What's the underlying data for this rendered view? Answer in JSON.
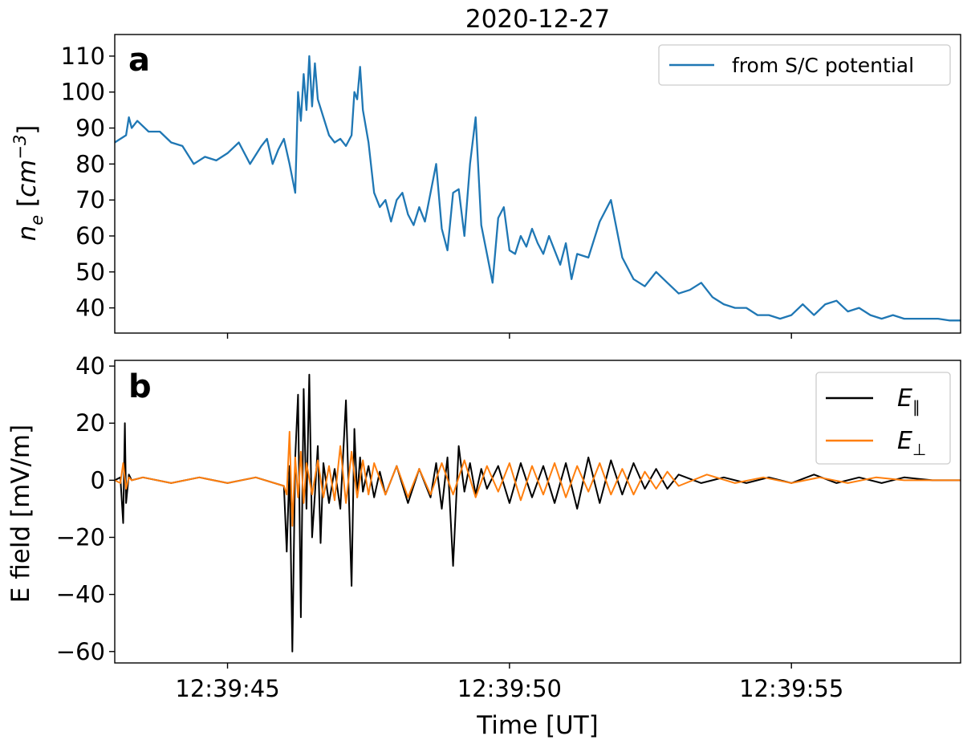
{
  "title": "2020-12-27",
  "chart_data": [
    {
      "type": "line",
      "panel_label": "a",
      "ylabel": "n_e [cm^-3]",
      "ylabel_parts": {
        "symbol": "n",
        "subscript": "e",
        "unit_base": "cm",
        "unit_exp": "−3"
      },
      "ylim": [
        33,
        116
      ],
      "yticks": [
        40,
        50,
        60,
        70,
        80,
        90,
        100,
        110
      ],
      "xlim_seconds": [
        43.0,
        58.0
      ],
      "xticks": [
        "12:39:45",
        "12:39:50",
        "12:39:55"
      ],
      "x_tick_seconds": [
        45,
        50,
        55
      ],
      "legend": {
        "position": "top-right"
      },
      "series": [
        {
          "name": "from S/C potential",
          "color": "#1f77b4",
          "x_seconds": [
            43.0,
            43.1,
            43.2,
            43.25,
            43.3,
            43.4,
            43.6,
            43.8,
            44.0,
            44.2,
            44.4,
            44.6,
            44.8,
            45.0,
            45.2,
            45.4,
            45.6,
            45.7,
            45.8,
            45.9,
            46.0,
            46.1,
            46.2,
            46.25,
            46.3,
            46.35,
            46.4,
            46.45,
            46.5,
            46.55,
            46.6,
            46.7,
            46.8,
            46.9,
            47.0,
            47.1,
            47.2,
            47.25,
            47.3,
            47.35,
            47.4,
            47.5,
            47.6,
            47.7,
            47.8,
            47.9,
            48.0,
            48.1,
            48.2,
            48.3,
            48.4,
            48.5,
            48.6,
            48.7,
            48.8,
            48.9,
            49.0,
            49.1,
            49.2,
            49.3,
            49.4,
            49.5,
            49.6,
            49.7,
            49.8,
            49.9,
            50.0,
            50.1,
            50.2,
            50.3,
            50.4,
            50.5,
            50.6,
            50.7,
            50.8,
            50.9,
            51.0,
            51.1,
            51.2,
            51.4,
            51.6,
            51.8,
            52.0,
            52.2,
            52.4,
            52.5,
            52.6,
            52.8,
            53.0,
            53.2,
            53.4,
            53.6,
            53.8,
            54.0,
            54.2,
            54.4,
            54.6,
            54.8,
            55.0,
            55.2,
            55.4,
            55.6,
            55.8,
            56.0,
            56.2,
            56.4,
            56.6,
            56.8,
            57.0,
            57.2,
            57.4,
            57.6,
            57.8,
            58.0
          ],
          "y": [
            86,
            87,
            88,
            93,
            90,
            92,
            89,
            89,
            86,
            85,
            80,
            82,
            81,
            83,
            86,
            80,
            85,
            87,
            80,
            84,
            87,
            80,
            72,
            100,
            92,
            105,
            95,
            110,
            96,
            108,
            98,
            93,
            88,
            86,
            87,
            85,
            88,
            100,
            98,
            107,
            95,
            86,
            72,
            68,
            70,
            64,
            70,
            72,
            66,
            63,
            68,
            64,
            72,
            80,
            62,
            56,
            72,
            73,
            60,
            80,
            93,
            63,
            55,
            47,
            65,
            68,
            56,
            55,
            60,
            57,
            62,
            58,
            55,
            60,
            56,
            52,
            58,
            48,
            55,
            54,
            64,
            70,
            54,
            48,
            46,
            48,
            50,
            47,
            44,
            45,
            47,
            43,
            41,
            40,
            40,
            38,
            38,
            37,
            38,
            41,
            38,
            41,
            42,
            39,
            40,
            38,
            37,
            38,
            37,
            37,
            37,
            37,
            36.5,
            36.5
          ]
        }
      ]
    },
    {
      "type": "line",
      "panel_label": "b",
      "ylabel": "E field [mV/m]",
      "xlabel": "Time [UT]",
      "ylim": [
        -64,
        42
      ],
      "yticks": [
        -60,
        -40,
        -20,
        0,
        20,
        40
      ],
      "xlim_seconds": [
        43.0,
        58.0
      ],
      "xticks": [
        "12:39:45",
        "12:39:50",
        "12:39:55"
      ],
      "x_tick_seconds": [
        45,
        50,
        55
      ],
      "legend": {
        "position": "top-right"
      },
      "series": [
        {
          "name": "E_∥",
          "color": "#000000",
          "x_seconds": [
            43.0,
            43.1,
            43.15,
            43.18,
            43.2,
            43.25,
            43.3,
            43.5,
            44.0,
            44.5,
            45.0,
            45.5,
            46.0,
            46.05,
            46.1,
            46.15,
            46.2,
            46.25,
            46.3,
            46.35,
            46.4,
            46.45,
            46.5,
            46.55,
            46.6,
            46.65,
            46.7,
            46.8,
            46.9,
            47.0,
            47.1,
            47.2,
            47.25,
            47.3,
            47.35,
            47.4,
            47.5,
            47.6,
            47.7,
            47.8,
            48.0,
            48.2,
            48.4,
            48.6,
            48.7,
            48.8,
            48.9,
            49.0,
            49.1,
            49.2,
            49.3,
            49.4,
            49.5,
            49.6,
            49.8,
            50.0,
            50.2,
            50.4,
            50.6,
            50.8,
            51.0,
            51.2,
            51.4,
            51.6,
            51.8,
            52.0,
            52.2,
            52.4,
            52.6,
            52.8,
            53.0,
            53.4,
            53.8,
            54.2,
            54.6,
            55.0,
            55.4,
            55.8,
            56.2,
            56.6,
            57.0,
            57.5,
            58.0
          ],
          "y": [
            0,
            1,
            -15,
            20,
            -8,
            2,
            0,
            1,
            -1,
            1,
            -1,
            1,
            -2,
            -25,
            5,
            -60,
            8,
            30,
            -48,
            32,
            -10,
            37,
            -20,
            -5,
            12,
            -22,
            6,
            -8,
            4,
            -10,
            28,
            -37,
            18,
            -6,
            8,
            -4,
            5,
            -6,
            3,
            -5,
            5,
            -8,
            4,
            -6,
            6,
            -10,
            8,
            -30,
            12,
            -4,
            6,
            -5,
            4,
            -3,
            5,
            -8,
            6,
            -6,
            5,
            -8,
            6,
            -10,
            8,
            -8,
            7,
            -5,
            6,
            -3,
            4,
            -3,
            2,
            -1,
            1,
            -1,
            1,
            -1,
            2,
            -1,
            1,
            -1,
            1,
            0,
            0
          ]
        },
        {
          "name": "E_⊥",
          "color": "#ff7f0e",
          "x_seconds": [
            43.0,
            43.1,
            43.15,
            43.2,
            43.25,
            43.3,
            43.5,
            44.0,
            44.5,
            45.0,
            45.5,
            46.0,
            46.05,
            46.1,
            46.15,
            46.2,
            46.25,
            46.3,
            46.35,
            46.4,
            46.5,
            46.6,
            46.7,
            46.8,
            46.9,
            47.0,
            47.1,
            47.2,
            47.3,
            47.4,
            47.5,
            47.6,
            47.8,
            48.0,
            48.2,
            48.4,
            48.6,
            48.8,
            49.0,
            49.2,
            49.4,
            49.6,
            49.8,
            50.0,
            50.2,
            50.4,
            50.6,
            50.8,
            51.0,
            51.2,
            51.4,
            51.6,
            51.8,
            52.0,
            52.2,
            52.4,
            52.6,
            52.8,
            53.0,
            53.5,
            54.0,
            54.5,
            55.0,
            55.5,
            56.0,
            56.5,
            57.0,
            57.5,
            58.0
          ],
          "y": [
            0,
            -1,
            6,
            -3,
            1,
            0,
            1,
            -1,
            1,
            -1,
            1,
            -2,
            -5,
            17,
            -16,
            8,
            -6,
            10,
            -8,
            6,
            -5,
            7,
            -6,
            5,
            -7,
            12,
            -8,
            10,
            -6,
            7,
            -5,
            6,
            -5,
            5,
            -6,
            4,
            -5,
            6,
            -5,
            7,
            -6,
            5,
            -4,
            6,
            -7,
            5,
            -5,
            6,
            -6,
            5,
            -4,
            6,
            -5,
            4,
            -5,
            3,
            -3,
            3,
            -2,
            2,
            -1,
            1,
            -1,
            1,
            -1,
            1,
            0,
            0,
            0
          ]
        }
      ]
    }
  ]
}
